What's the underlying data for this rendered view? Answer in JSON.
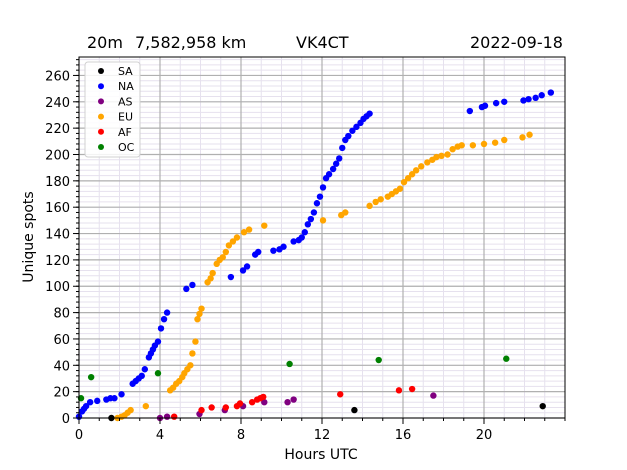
{
  "header": {
    "band": "20m",
    "distance": "7,582,958 km",
    "callsign": "VK4CT",
    "date": "2022-09-18"
  },
  "chart_data": {
    "type": "scatter",
    "title": "20m   7,582,958 km   VK4CT   2022-09-18",
    "xlabel": "Hours UTC",
    "ylabel": "Unique spots",
    "xlim": [
      0,
      24
    ],
    "ylim": [
      0,
      274
    ],
    "xticks": [
      0,
      4,
      8,
      12,
      16,
      20
    ],
    "yticks": [
      0,
      20,
      40,
      60,
      80,
      100,
      120,
      140,
      160,
      180,
      200,
      220,
      240,
      260
    ],
    "grid": {
      "major": true,
      "minor": true,
      "major_color": "#b0b0b0",
      "minor_color": "#e6e1ee"
    },
    "legend_position": "upper left",
    "series": [
      {
        "name": "SA",
        "color": "#000000",
        "points": [
          [
            1.6,
            0
          ],
          [
            13.6,
            6
          ],
          [
            22.9,
            9
          ]
        ]
      },
      {
        "name": "NA",
        "color": "#0000ff",
        "points": [
          [
            0.0,
            1
          ],
          [
            0.15,
            5
          ],
          [
            0.25,
            7
          ],
          [
            0.35,
            9
          ],
          [
            0.55,
            12
          ],
          [
            0.9,
            13
          ],
          [
            1.35,
            14
          ],
          [
            1.55,
            15
          ],
          [
            1.75,
            15
          ],
          [
            2.1,
            18
          ],
          [
            2.65,
            26
          ],
          [
            2.8,
            28
          ],
          [
            2.95,
            30
          ],
          [
            3.1,
            32
          ],
          [
            3.25,
            37
          ],
          [
            3.45,
            46
          ],
          [
            3.55,
            49
          ],
          [
            3.65,
            52
          ],
          [
            3.75,
            55
          ],
          [
            3.9,
            58
          ],
          [
            4.05,
            68
          ],
          [
            4.2,
            75
          ],
          [
            4.35,
            80
          ],
          [
            5.3,
            98
          ],
          [
            5.6,
            101
          ],
          [
            7.5,
            107
          ],
          [
            8.1,
            112
          ],
          [
            8.3,
            115
          ],
          [
            8.7,
            124
          ],
          [
            8.85,
            126
          ],
          [
            9.6,
            127
          ],
          [
            9.9,
            128
          ],
          [
            10.1,
            130
          ],
          [
            10.6,
            134
          ],
          [
            10.85,
            135
          ],
          [
            11.0,
            137
          ],
          [
            11.15,
            141
          ],
          [
            11.3,
            147
          ],
          [
            11.45,
            151
          ],
          [
            11.6,
            156
          ],
          [
            11.75,
            163
          ],
          [
            11.9,
            168
          ],
          [
            12.05,
            175
          ],
          [
            12.2,
            182
          ],
          [
            12.35,
            185
          ],
          [
            12.55,
            189
          ],
          [
            12.7,
            193
          ],
          [
            12.85,
            197
          ],
          [
            13.0,
            205
          ],
          [
            13.15,
            211
          ],
          [
            13.3,
            214
          ],
          [
            13.5,
            218
          ],
          [
            13.7,
            221
          ],
          [
            13.9,
            224
          ],
          [
            14.05,
            227
          ],
          [
            14.2,
            229
          ],
          [
            14.35,
            231
          ],
          [
            19.3,
            233
          ],
          [
            19.9,
            236
          ],
          [
            20.05,
            237
          ],
          [
            20.6,
            239
          ],
          [
            21.0,
            240
          ],
          [
            21.95,
            241
          ],
          [
            22.2,
            242
          ],
          [
            22.55,
            243
          ],
          [
            22.85,
            245
          ],
          [
            23.3,
            247
          ]
        ]
      },
      {
        "name": "AS",
        "color": "#800080",
        "points": [
          [
            4.0,
            0
          ],
          [
            4.35,
            1
          ],
          [
            5.95,
            3
          ],
          [
            7.2,
            6
          ],
          [
            8.1,
            9
          ],
          [
            9.15,
            12
          ],
          [
            10.3,
            12
          ],
          [
            10.6,
            14
          ],
          [
            17.5,
            17
          ]
        ]
      },
      {
        "name": "EU",
        "color": "#ffa500",
        "points": [
          [
            1.9,
            0
          ],
          [
            2.1,
            1
          ],
          [
            2.25,
            2
          ],
          [
            2.4,
            4
          ],
          [
            2.55,
            6
          ],
          [
            3.3,
            9
          ],
          [
            4.5,
            21
          ],
          [
            4.65,
            23
          ],
          [
            4.8,
            26
          ],
          [
            4.95,
            28
          ],
          [
            5.1,
            31
          ],
          [
            5.2,
            34
          ],
          [
            5.35,
            37
          ],
          [
            5.5,
            40
          ],
          [
            5.6,
            49
          ],
          [
            5.75,
            58
          ],
          [
            5.85,
            75
          ],
          [
            5.95,
            79
          ],
          [
            6.05,
            83
          ],
          [
            6.35,
            103
          ],
          [
            6.5,
            106
          ],
          [
            6.6,
            110
          ],
          [
            6.8,
            117
          ],
          [
            6.95,
            120
          ],
          [
            7.1,
            122
          ],
          [
            7.25,
            126
          ],
          [
            7.4,
            131
          ],
          [
            7.6,
            134
          ],
          [
            7.8,
            137
          ],
          [
            8.15,
            141
          ],
          [
            8.4,
            143
          ],
          [
            9.15,
            146
          ],
          [
            12.05,
            150
          ],
          [
            12.95,
            154
          ],
          [
            13.15,
            156
          ],
          [
            14.35,
            161
          ],
          [
            14.65,
            164
          ],
          [
            14.9,
            166
          ],
          [
            15.25,
            168
          ],
          [
            15.45,
            170
          ],
          [
            15.65,
            172
          ],
          [
            15.85,
            174
          ],
          [
            16.05,
            179
          ],
          [
            16.25,
            182
          ],
          [
            16.45,
            185
          ],
          [
            16.65,
            188
          ],
          [
            16.9,
            191
          ],
          [
            17.2,
            194
          ],
          [
            17.45,
            196
          ],
          [
            17.65,
            198
          ],
          [
            17.9,
            199
          ],
          [
            18.2,
            200
          ],
          [
            18.45,
            204
          ],
          [
            18.7,
            206
          ],
          [
            18.9,
            207
          ],
          [
            19.45,
            207
          ],
          [
            20.0,
            208
          ],
          [
            20.55,
            209
          ],
          [
            21.0,
            211
          ],
          [
            21.9,
            213
          ],
          [
            22.25,
            215
          ]
        ]
      },
      {
        "name": "AF",
        "color": "#ff0000",
        "points": [
          [
            4.7,
            1
          ],
          [
            6.05,
            6
          ],
          [
            6.55,
            8
          ],
          [
            7.25,
            8
          ],
          [
            7.8,
            9
          ],
          [
            7.95,
            11
          ],
          [
            8.55,
            12
          ],
          [
            8.8,
            14
          ],
          [
            8.95,
            15
          ],
          [
            9.1,
            16
          ],
          [
            12.9,
            18
          ],
          [
            15.8,
            21
          ],
          [
            16.45,
            22
          ]
        ]
      },
      {
        "name": "OC",
        "color": "#008000",
        "points": [
          [
            0.1,
            15
          ],
          [
            0.6,
            31
          ],
          [
            3.9,
            34
          ],
          [
            10.4,
            41
          ],
          [
            14.8,
            44
          ],
          [
            21.1,
            45
          ]
        ]
      }
    ]
  }
}
